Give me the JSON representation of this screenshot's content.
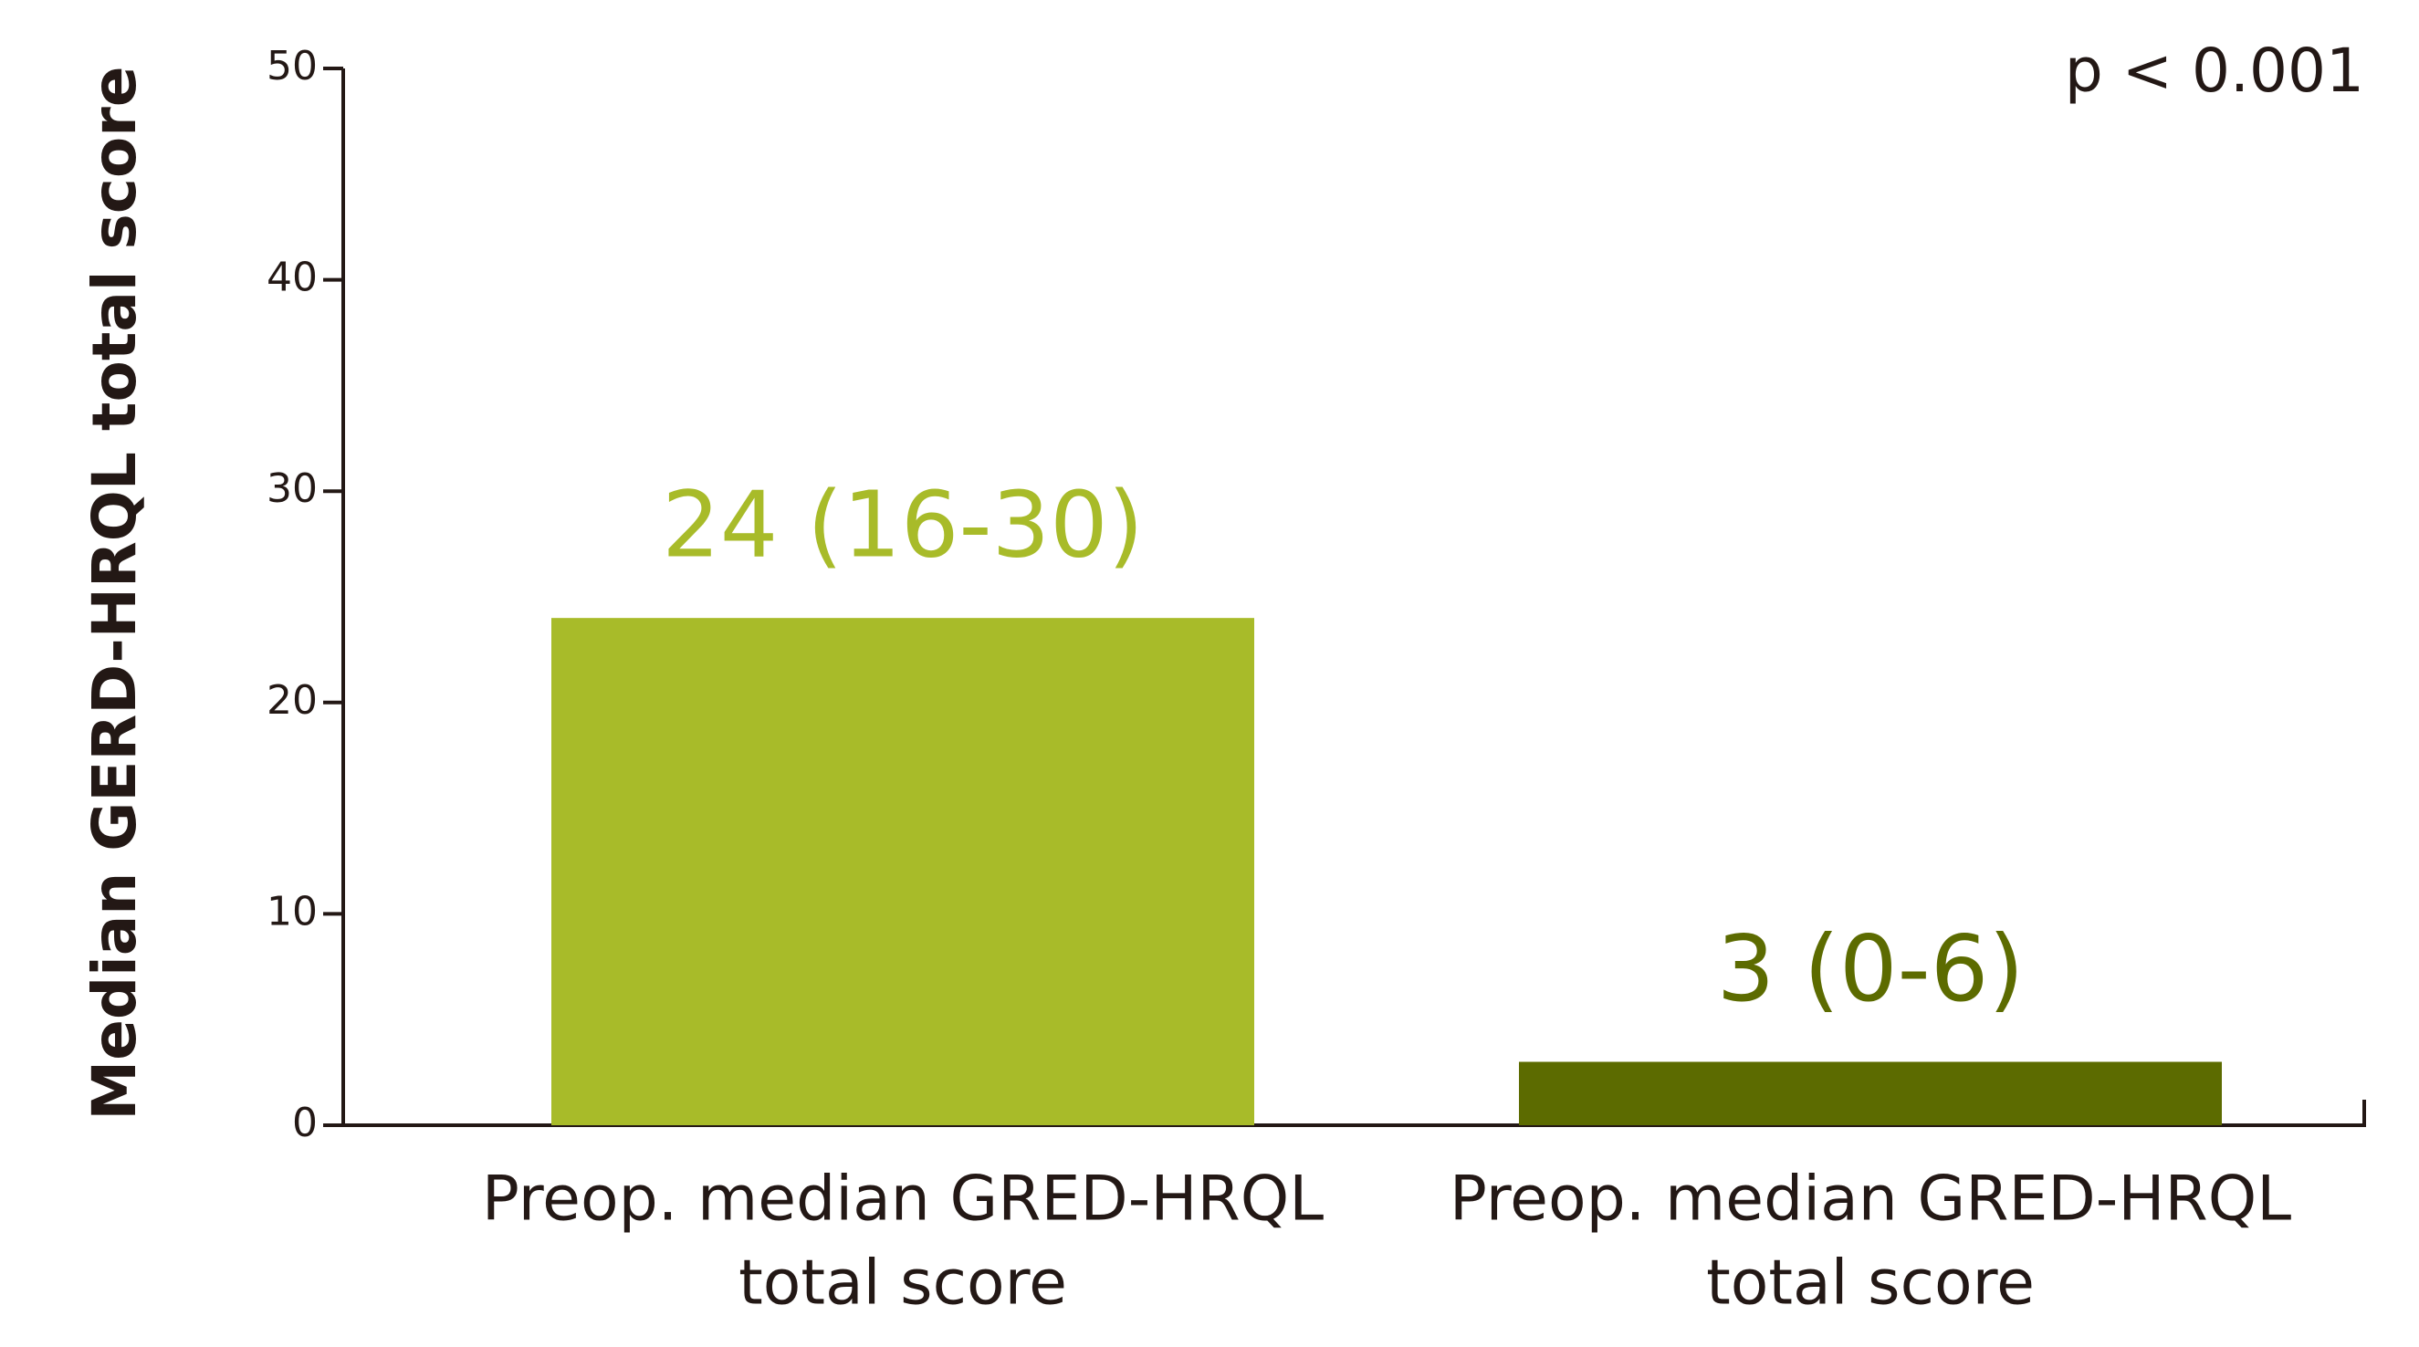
{
  "chart_data": {
    "type": "bar",
    "y_label": "Median GERD-HRQL total score",
    "annotation": "p < 0.001",
    "categories": [
      [
        "Preop. median GRED-HRQL",
        "total score"
      ],
      [
        "Preop. median GRED-HRQL",
        "total score"
      ]
    ],
    "values": [
      24,
      3
    ],
    "value_labels": [
      "24 (16-30)",
      "3 (0-6)"
    ],
    "colors": [
      "#a8bb29",
      "#5c6b00"
    ],
    "ylim": [
      0,
      50
    ],
    "yticks": [
      0,
      10,
      20,
      30,
      40,
      50
    ],
    "grid": false
  }
}
